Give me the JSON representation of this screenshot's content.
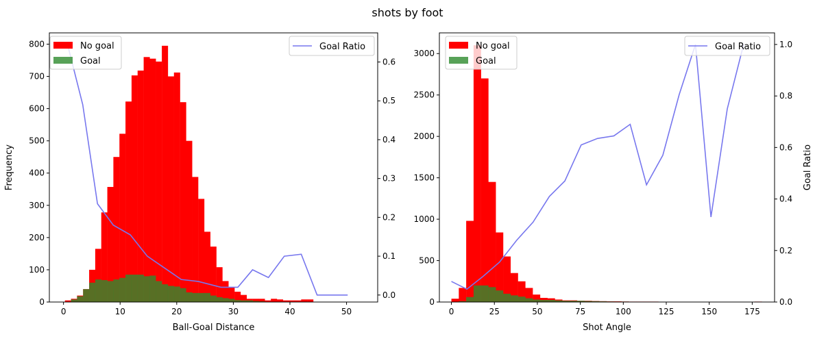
{
  "figure": {
    "title": "shots by foot"
  },
  "chart_data": [
    {
      "type": "bar",
      "xlabel": "Ball-Goal Distance",
      "ylabel": "Frequency",
      "y2label": "",
      "xlim": [
        -2.5,
        55.5
      ],
      "ylim": [
        0,
        835
      ],
      "y2lim": [
        -0.018,
        0.675
      ],
      "xticks": [
        0,
        10,
        20,
        30,
        40,
        50
      ],
      "yticks": [
        0,
        100,
        200,
        300,
        400,
        500,
        600,
        700,
        800
      ],
      "y2ticks": [
        0.0,
        0.1,
        0.2,
        0.3,
        0.4,
        0.5,
        0.6
      ],
      "y2tick_decimals": 1,
      "bin_width": 1.07,
      "bin_start": 0.25,
      "series": [
        {
          "name": "No goal",
          "color": "#ff0000",
          "values": [
            5,
            10,
            20,
            40,
            100,
            165,
            278,
            357,
            450,
            522,
            622,
            703,
            718,
            760,
            755,
            746,
            795,
            700,
            712,
            620,
            500,
            388,
            320,
            218,
            172,
            108,
            65,
            45,
            32,
            22,
            10,
            10,
            10,
            5,
            10,
            8,
            5,
            5,
            5,
            8,
            8
          ]
        },
        {
          "name": "Goal",
          "color": "#2e8b2e",
          "values": [
            0,
            8,
            18,
            40,
            60,
            70,
            68,
            65,
            70,
            75,
            85,
            85,
            85,
            80,
            82,
            65,
            55,
            50,
            48,
            43,
            30,
            28,
            28,
            28,
            20,
            15,
            12,
            10,
            6,
            5,
            5,
            3,
            2,
            1,
            1,
            0,
            0,
            0,
            0,
            0,
            0
          ]
        }
      ],
      "line": {
        "name": "Goal Ratio",
        "color": "#7777ee",
        "x": [
          0.8,
          3.4,
          6,
          8.8,
          11.8,
          14.8,
          17.8,
          20.8,
          23.8,
          27.8,
          30.8,
          33.4,
          36.2,
          39,
          42,
          44.8,
          50.2
        ],
        "y": [
          0.64,
          0.49,
          0.235,
          0.18,
          0.155,
          0.1,
          0.07,
          0.04,
          0.035,
          0.02,
          0.02,
          0.065,
          0.045,
          0.1,
          0.105,
          0.0,
          0.0
        ]
      },
      "legend": {
        "bars": "top-left",
        "line": "top-right"
      }
    },
    {
      "type": "bar",
      "xlabel": "Shot Angle",
      "ylabel": "",
      "y2label": "Goal Ratio",
      "xlim": [
        -7,
        188
      ],
      "ylim": [
        0,
        3250
      ],
      "y2lim": [
        0,
        1.045
      ],
      "xticks": [
        0,
        25,
        50,
        75,
        100,
        125,
        150,
        175
      ],
      "yticks": [
        0,
        500,
        1000,
        1500,
        2000,
        2500,
        3000
      ],
      "y2ticks": [
        0.0,
        0.2,
        0.4,
        0.6,
        0.8,
        1.0
      ],
      "y2tick_decimals": 1,
      "bin_width": 4.3,
      "bin_start": 0,
      "series": [
        {
          "name": "No goal",
          "color": "#ff0000",
          "values": [
            40,
            170,
            980,
            3100,
            2700,
            1450,
            840,
            550,
            350,
            250,
            170,
            90,
            50,
            45,
            30,
            20,
            20,
            15,
            15,
            12,
            10,
            8,
            8,
            6,
            5,
            5,
            5,
            5,
            4,
            4,
            4,
            3,
            3,
            3,
            3,
            3,
            2,
            2,
            2,
            2,
            2,
            5
          ]
        },
        {
          "name": "Goal",
          "color": "#2e8b2e",
          "values": [
            0,
            10,
            60,
            200,
            200,
            180,
            140,
            100,
            80,
            65,
            45,
            30,
            25,
            25,
            20,
            15,
            15,
            15,
            12,
            10,
            8,
            6,
            5,
            5,
            4,
            4,
            4,
            3,
            3,
            3,
            3,
            2,
            2,
            2,
            2,
            2,
            1,
            1,
            1,
            1,
            1,
            1
          ]
        }
      ],
      "line": {
        "name": "Goal Ratio",
        "color": "#7777ee",
        "x": [
          0,
          9,
          18.5,
          28,
          38,
          47.5,
          57,
          66,
          75.5,
          85,
          94.5,
          104,
          113.5,
          123,
          132.5,
          142,
          151,
          160.5,
          170
        ],
        "y": [
          0.08,
          0.05,
          0.1,
          0.155,
          0.24,
          0.31,
          0.41,
          0.47,
          0.61,
          0.635,
          0.645,
          0.69,
          0.455,
          0.57,
          0.805,
          1.0,
          0.33,
          0.75,
          1.0
        ]
      },
      "legend": {
        "bars": "top-left",
        "line": "top-right"
      }
    }
  ]
}
